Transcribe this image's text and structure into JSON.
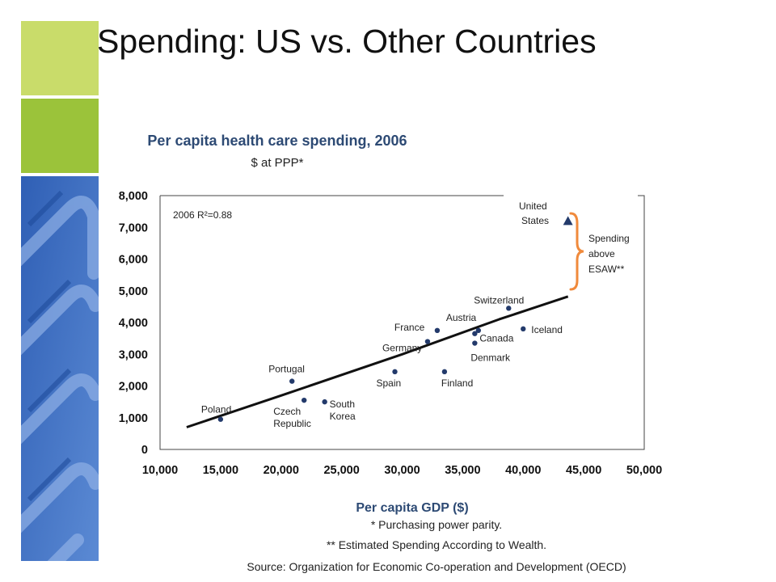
{
  "slide": {
    "title": "Spending: US vs. Other Countries",
    "footnotes": [
      "* Purchasing power parity.",
      "** Estimated Spending According to Wealth.",
      "Source:  Organization for Economic Co-operation and Development (OECD)"
    ],
    "accent_colors": {
      "light_green": "#c9dc6a",
      "green": "#9bc33a",
      "blue": "#3d6fc4",
      "navy_text": "#2d4a74",
      "bracket": "#f08a3c"
    }
  },
  "chart_data": {
    "type": "scatter",
    "title": "Per capita health care spending, 2006",
    "subtitle": "$ at PPP*",
    "xlabel": "Per capita GDP ($)",
    "ylabel": "",
    "xlim": [
      10000,
      50000
    ],
    "ylim": [
      0,
      8000
    ],
    "x_ticks": [
      "10,000",
      "15,000",
      "20,000",
      "25,000",
      "30,000",
      "35,000",
      "40,000",
      "45,000",
      "50,000"
    ],
    "y_ticks": [
      "0",
      "1,000",
      "2,000",
      "3,000",
      "4,000",
      "5,000",
      "6,000",
      "7,000",
      "8,000"
    ],
    "annotation": "2006 R²=0.88",
    "trend_line": {
      "x": [
        12200,
        20000,
        30000,
        38000,
        43700
      ],
      "y": [
        700,
        1700,
        3000,
        4100,
        4820
      ]
    },
    "points": [
      {
        "label": "Poland",
        "x": 15000,
        "y": 950
      },
      {
        "label": "Czech Republic",
        "x": 21900,
        "y": 1550
      },
      {
        "label": "South Korea",
        "x": 23600,
        "y": 1500
      },
      {
        "label": "Portugal",
        "x": 20900,
        "y": 2150
      },
      {
        "label": "Spain",
        "x": 29400,
        "y": 2450
      },
      {
        "label": "Germany",
        "x": 32100,
        "y": 3400
      },
      {
        "label": "France",
        "x": 32900,
        "y": 3750
      },
      {
        "label": "Finland",
        "x": 33500,
        "y": 2450
      },
      {
        "label": "Austria",
        "x": 36300,
        "y": 3750
      },
      {
        "label": "Canada",
        "x": 36000,
        "y": 3650
      },
      {
        "label": "Denmark",
        "x": 36000,
        "y": 3350
      },
      {
        "label": "Switzerland",
        "x": 38800,
        "y": 4450
      },
      {
        "label": "Iceland",
        "x": 40000,
        "y": 3800
      },
      {
        "label": "United States",
        "x": 43700,
        "y": 7200,
        "marker": "triangle"
      }
    ],
    "bracket_label": "Spending above ESAW**",
    "grid": false
  }
}
